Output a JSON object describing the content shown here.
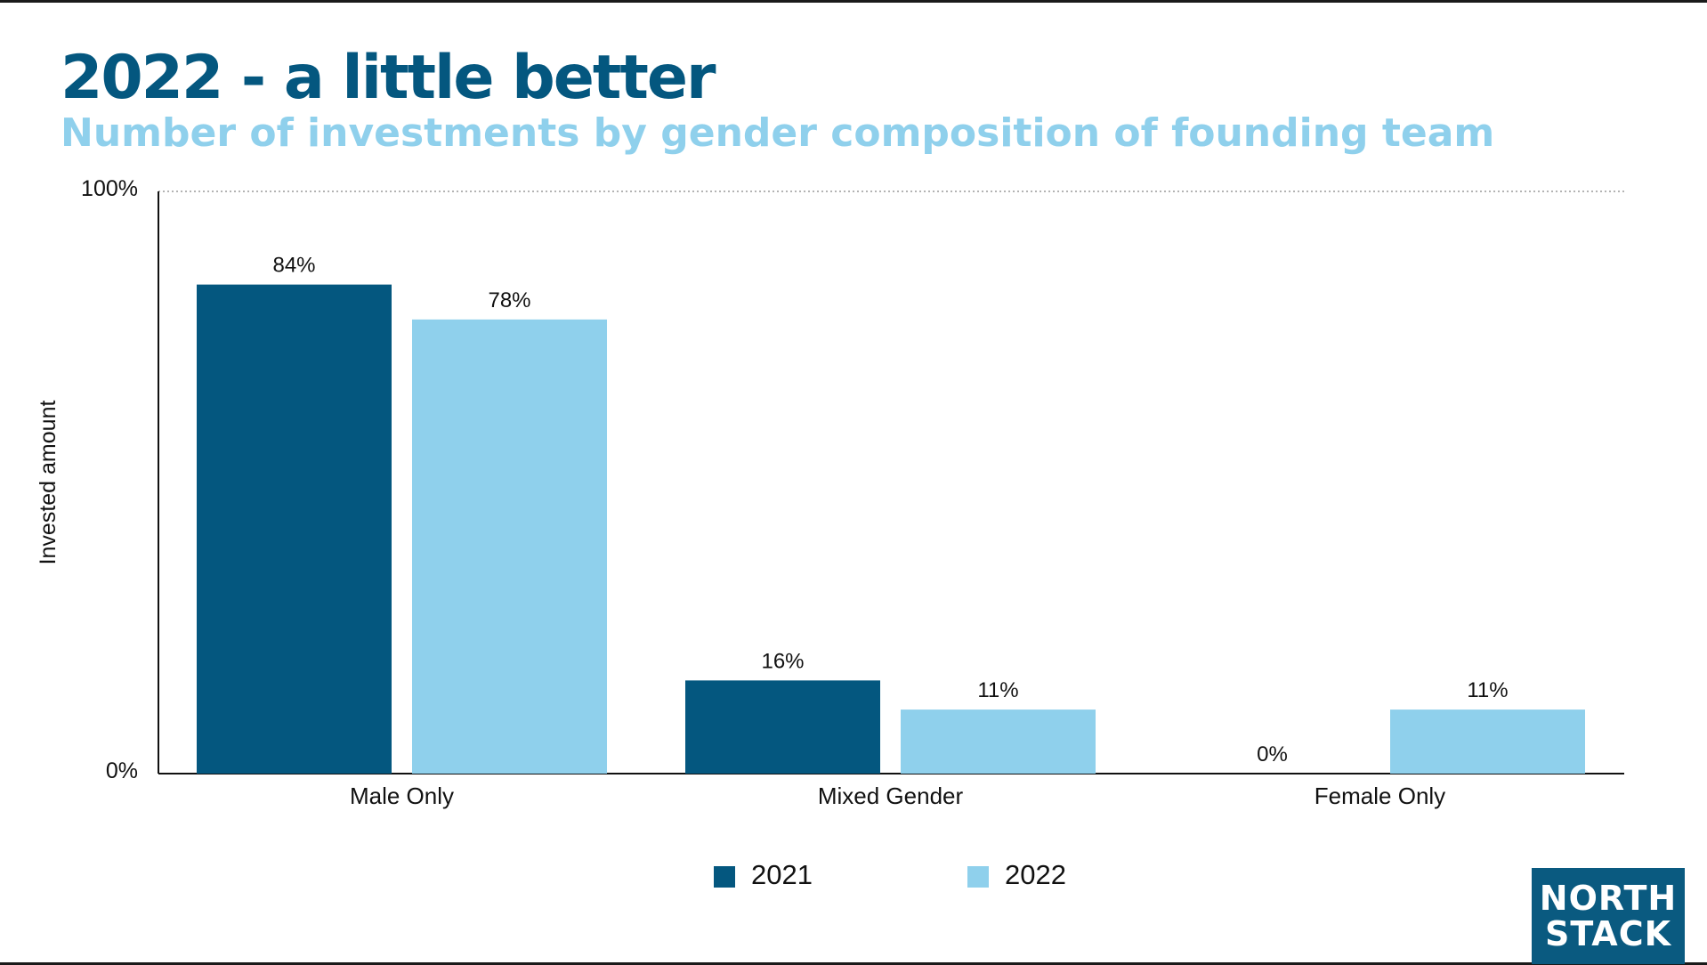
{
  "title": "2022 - a little better",
  "subtitle": "Number of investments by gender composition of founding team",
  "logo": {
    "line1": "NORTH",
    "line2": "STACK"
  },
  "colors": {
    "series_2021": "#04577f",
    "series_2022": "#8fd0ec",
    "title": "#04577f",
    "subtitle": "#8fd0ec"
  },
  "chart_data": {
    "type": "bar",
    "title": "2022 - a little better",
    "subtitle": "Number of investments by gender composition of founding team",
    "xlabel": "",
    "ylabel": "Invested amount",
    "ylim": [
      0,
      100
    ],
    "y_ticks": [
      "0%",
      "100%"
    ],
    "grid": false,
    "legend": "bottom-center",
    "categories": [
      "Male Only",
      "Mixed Gender",
      "Female Only"
    ],
    "series": [
      {
        "name": "2021",
        "values": [
          84,
          16,
          0
        ],
        "labels": [
          "84%",
          "16%",
          "0%"
        ]
      },
      {
        "name": "2022",
        "values": [
          78,
          11,
          11
        ],
        "labels": [
          "78%",
          "11%",
          "11%"
        ]
      }
    ]
  }
}
